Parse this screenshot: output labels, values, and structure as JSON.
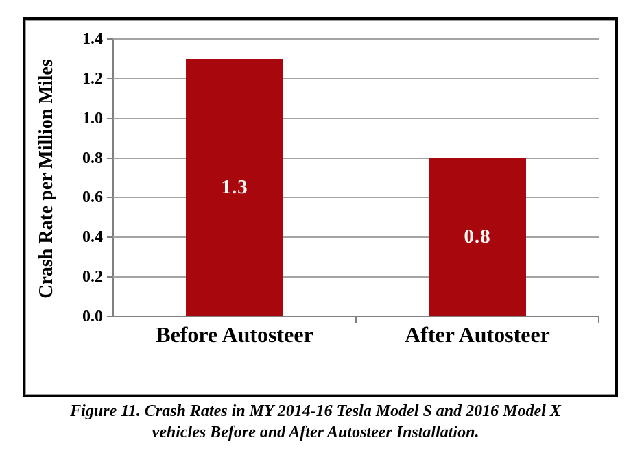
{
  "figure": {
    "caption_line1": "Figure 11. Crash Rates in MY 2014-16 Tesla Model S and 2016 Model X",
    "caption_line2": "vehicles Before and After Autosteer Installation."
  },
  "chart_data": {
    "type": "bar",
    "categories": [
      "Before Autosteer",
      "After Autosteer"
    ],
    "values": [
      1.3,
      0.8
    ],
    "bar_labels": [
      "1.3",
      "0.8"
    ],
    "title": "",
    "xlabel": "",
    "ylabel": "Crash Rate per Million Miles",
    "ylim": [
      0,
      1.4
    ],
    "ytick_step": 0.2,
    "ytick_labels": [
      "0.0",
      "0.2",
      "0.4",
      "0.6",
      "0.8",
      "1.0",
      "1.2",
      "1.4"
    ],
    "grid": true,
    "legend_position": "none",
    "colors": {
      "bar": "#A8070E",
      "bar_label_text": "#FFF8F2",
      "gridline": "#A3A3A3",
      "axis": "#808080",
      "text": "#000000"
    }
  }
}
